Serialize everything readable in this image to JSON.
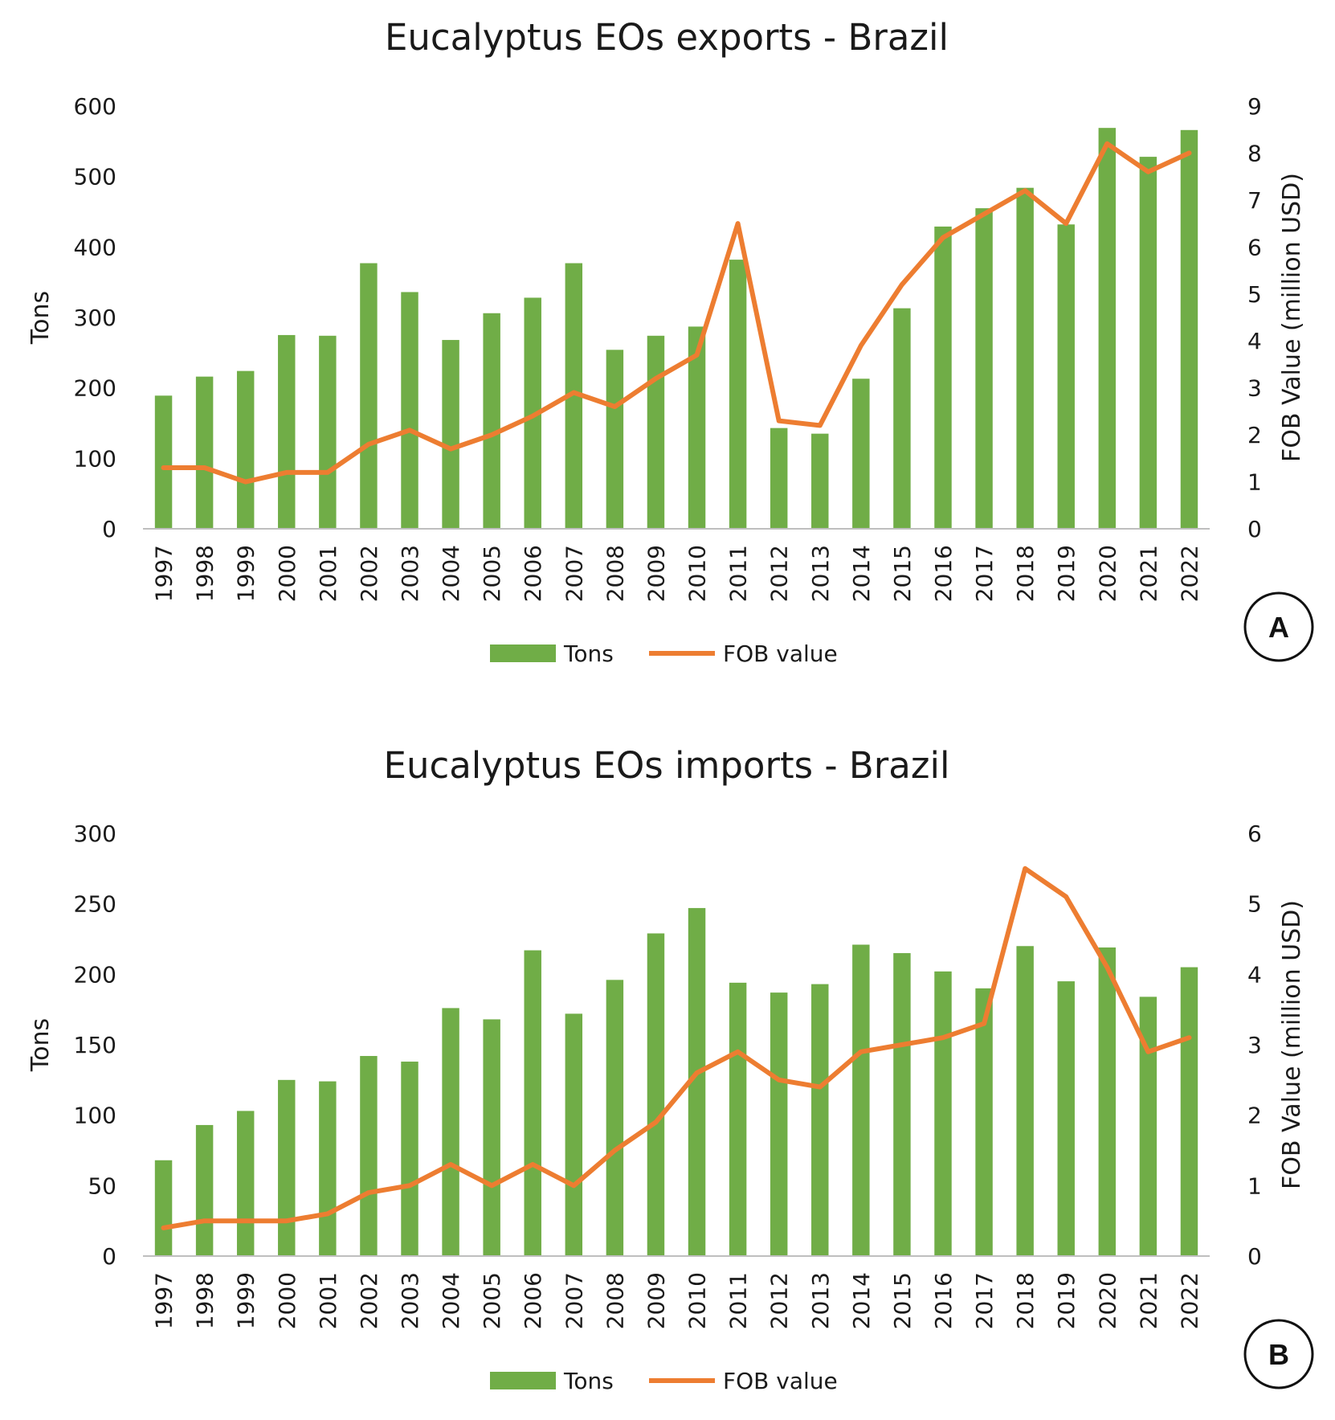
{
  "colors": {
    "bar": "#70ad47",
    "line": "#ed7d31",
    "axis": "#bfbfbf",
    "text": "#1a1a1a"
  },
  "chart_data": [
    {
      "type": "bar",
      "title": "Eucalyptus EOs exports - Brazil",
      "panel_label": "A",
      "xlabel": "",
      "ylabel": "Tons",
      "y2label": "FOB Value (million USD)",
      "ylim": [
        0,
        600
      ],
      "y2lim": [
        0,
        9
      ],
      "yticks": [
        "0",
        "100",
        "200",
        "300",
        "400",
        "500",
        "600"
      ],
      "y2ticks": [
        "0",
        "1",
        "2",
        "3",
        "4",
        "5",
        "6",
        "7",
        "8",
        "9"
      ],
      "categories": [
        "1997",
        "1998",
        "1999",
        "2000",
        "2001",
        "2002",
        "2003",
        "2004",
        "2005",
        "2006",
        "2007",
        "2008",
        "2009",
        "2010",
        "2011",
        "2012",
        "2013",
        "2014",
        "2015",
        "2016",
        "2017",
        "2018",
        "2019",
        "2020",
        "2021",
        "2022"
      ],
      "series": [
        {
          "name": "Tons",
          "type": "bar",
          "axis": "left",
          "values": [
            189,
            216,
            224,
            275,
            274,
            377,
            336,
            268,
            306,
            328,
            377,
            254,
            274,
            287,
            382,
            143,
            135,
            213,
            313,
            429,
            455,
            484,
            432,
            569,
            528,
            566
          ]
        },
        {
          "name": "FOB value",
          "type": "line",
          "axis": "right",
          "values": [
            1.3,
            1.3,
            1.0,
            1.2,
            1.2,
            1.8,
            2.1,
            1.7,
            2.0,
            2.4,
            2.9,
            2.6,
            3.2,
            3.7,
            6.5,
            2.3,
            2.2,
            3.9,
            5.2,
            6.2,
            6.7,
            7.2,
            6.5,
            8.2,
            7.6,
            8.0
          ]
        }
      ],
      "legend": [
        "Tons",
        "FOB value"
      ]
    },
    {
      "type": "bar",
      "title": "Eucalyptus EOs imports - Brazil",
      "panel_label": "B",
      "xlabel": "",
      "ylabel": "Tons",
      "y2label": "FOB Value (million USD)",
      "ylim": [
        0,
        300
      ],
      "y2lim": [
        0,
        6
      ],
      "yticks": [
        "0",
        "50",
        "100",
        "150",
        "200",
        "250",
        "300"
      ],
      "y2ticks": [
        "0",
        "1",
        "2",
        "3",
        "4",
        "5",
        "6"
      ],
      "categories": [
        "1997",
        "1998",
        "1999",
        "2000",
        "2001",
        "2002",
        "2003",
        "2004",
        "2005",
        "2006",
        "2007",
        "2008",
        "2009",
        "2010",
        "2011",
        "2012",
        "2013",
        "2014",
        "2015",
        "2016",
        "2017",
        "2018",
        "2019",
        "2020",
        "2021",
        "2022"
      ],
      "series": [
        {
          "name": "Tons",
          "type": "bar",
          "axis": "left",
          "values": [
            68,
            93,
            103,
            125,
            124,
            142,
            138,
            176,
            168,
            217,
            172,
            196,
            229,
            247,
            194,
            187,
            193,
            221,
            215,
            202,
            190,
            220,
            195,
            219,
            184,
            205
          ]
        },
        {
          "name": "FOB value",
          "type": "line",
          "axis": "right",
          "values": [
            0.4,
            0.5,
            0.5,
            0.5,
            0.6,
            0.9,
            1.0,
            1.3,
            1.0,
            1.3,
            1.0,
            1.5,
            1.9,
            2.6,
            2.9,
            2.5,
            2.4,
            2.9,
            3.0,
            3.1,
            3.3,
            5.5,
            5.1,
            4.1,
            2.9,
            3.1
          ]
        }
      ],
      "legend": [
        "Tons",
        "FOB value"
      ]
    }
  ]
}
